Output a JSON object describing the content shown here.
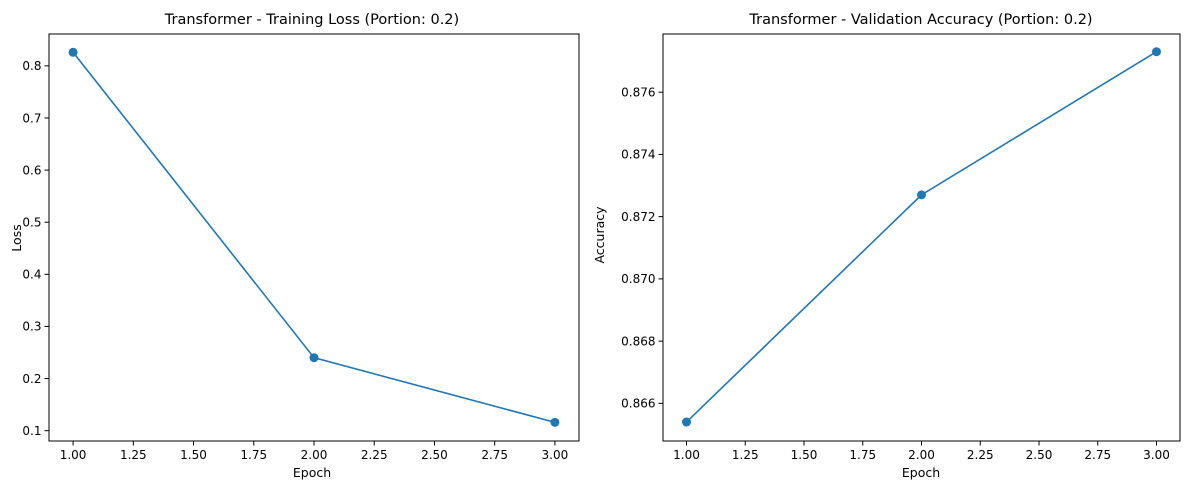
{
  "colors": {
    "series": "#1f77b4",
    "axes": "#000000",
    "background": "#ffffff"
  },
  "chart_data": [
    {
      "type": "line",
      "title": "Transformer - Training Loss (Portion: 0.2)",
      "xlabel": "Epoch",
      "ylabel": "Loss",
      "marker": "circle",
      "grid": false,
      "legend": "none",
      "xlim": [
        0.9,
        3.1
      ],
      "ylim": [
        0.0802,
        0.8611
      ],
      "xticks": [
        1.0,
        1.25,
        1.5,
        1.75,
        2.0,
        2.25,
        2.5,
        2.75,
        3.0
      ],
      "xtick_labels": [
        "1.00",
        "1.25",
        "1.50",
        "1.75",
        "2.00",
        "2.25",
        "2.50",
        "2.75",
        "3.00"
      ],
      "yticks": [
        0.1,
        0.2,
        0.3,
        0.4,
        0.5,
        0.6,
        0.7,
        0.8
      ],
      "ytick_labels": [
        "0.1",
        "0.2",
        "0.3",
        "0.4",
        "0.5",
        "0.6",
        "0.7",
        "0.8"
      ],
      "series": [
        {
          "x": [
            1,
            2,
            3
          ],
          "y": [
            0.826,
            0.24,
            0.116
          ]
        }
      ]
    },
    {
      "type": "line",
      "title": "Transformer - Validation Accuracy (Portion: 0.2)",
      "xlabel": "Epoch",
      "ylabel": "Accuracy",
      "marker": "circle",
      "grid": false,
      "legend": "none",
      "xlim": [
        0.9,
        3.1
      ],
      "ylim": [
        0.86479,
        0.87787
      ],
      "xticks": [
        1.0,
        1.25,
        1.5,
        1.75,
        2.0,
        2.25,
        2.5,
        2.75,
        3.0
      ],
      "xtick_labels": [
        "1.00",
        "1.25",
        "1.50",
        "1.75",
        "2.00",
        "2.25",
        "2.50",
        "2.75",
        "3.00"
      ],
      "yticks": [
        0.866,
        0.868,
        0.87,
        0.872,
        0.874,
        0.876
      ],
      "ytick_labels": [
        "0.866",
        "0.868",
        "0.870",
        "0.872",
        "0.874",
        "0.876"
      ],
      "series": [
        {
          "x": [
            1,
            2,
            3
          ],
          "y": [
            0.8654,
            0.8727,
            0.8773
          ]
        }
      ]
    }
  ]
}
